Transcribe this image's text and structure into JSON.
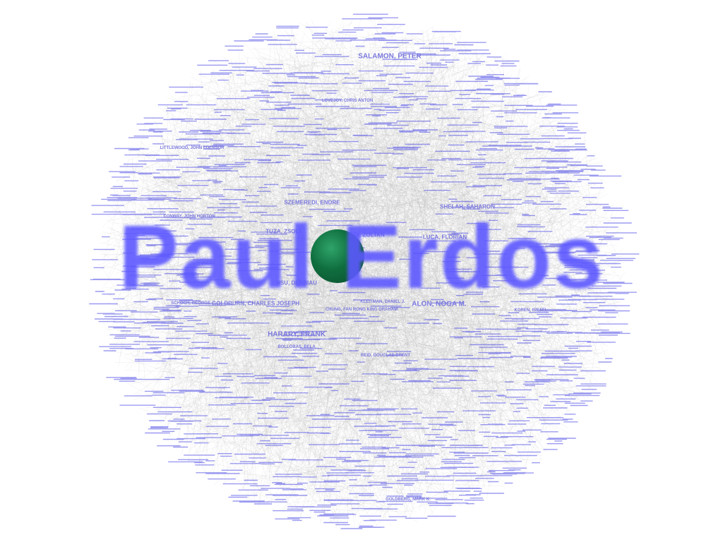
{
  "title": "Paul Erdos",
  "colors": {
    "background": "#ffffff",
    "edge": "#bdbdbd",
    "label": "#7a78de",
    "title": "#5c58ff",
    "center_node": "#0f6e3e"
  },
  "center_node": {
    "name": "Paul Erdos",
    "icon": "green-sphere"
  },
  "collaborators": [
    {
      "label": "SALAMON, PETER"
    },
    {
      "label": "LOVEJOY, CHRIS ANTON"
    },
    {
      "label": "LITTLEWOOD, JOHN EDENSOR"
    },
    {
      "label": "CONWAY, JOHN HORTON"
    },
    {
      "label": "SZEMEREDI, ENDRE"
    },
    {
      "label": "SHELAH, SAHARON"
    },
    {
      "label": "TUZA, ZSOLT"
    },
    {
      "label": "FUREDI, ZOLTAN"
    },
    {
      "label": "LUCA, FLORIAN"
    },
    {
      "label": "HSU, DERBIAU"
    },
    {
      "label": "GOLDBURN, CHARLES JOSEPH"
    },
    {
      "label": "ALON, NOGA M."
    },
    {
      "label": "CHUNG, FAN RONG KING GRAHAM"
    },
    {
      "label": "KOREN, ISRAEL"
    },
    {
      "label": "HARARY, FRANK"
    },
    {
      "label": "BOLLOBAS, BELA"
    },
    {
      "label": "REID, DOUGLAS BRENT"
    },
    {
      "label": "GOLDBERG, MARK K."
    },
    {
      "label": "KLEITMAN, DANIEL J."
    },
    {
      "label": "SCHOCH, GEORGE"
    }
  ]
}
